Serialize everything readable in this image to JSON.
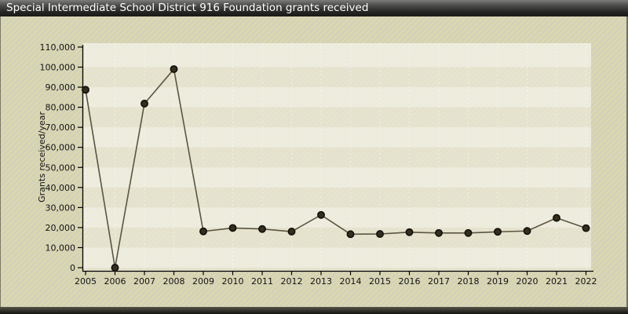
{
  "window": {
    "title": "Special Intermediate School District 916 Foundation grants received"
  },
  "chart_data": {
    "type": "line",
    "title": "Special Intermediate School District 916 Foundation grants received",
    "xlabel": "",
    "ylabel": "Grants received/year",
    "x": [
      "2005",
      "2006",
      "2007",
      "2008",
      "2009",
      "2010",
      "2011",
      "2012",
      "2013",
      "2014",
      "2015",
      "2016",
      "2017",
      "2018",
      "2019",
      "2020",
      "2021",
      "2022"
    ],
    "series": [
      {
        "name": "Grants received per year",
        "values": [
          88700,
          0,
          81800,
          99000,
          18100,
          19800,
          19300,
          18000,
          26300,
          16700,
          16800,
          17700,
          17300,
          17300,
          17900,
          18300,
          24800,
          19700
        ]
      }
    ],
    "ylim": [
      0,
      110000
    ],
    "ytick_step": 10000,
    "ytick_labels": [
      "0",
      "10,000",
      "20,000",
      "30,000",
      "40,000",
      "50,000",
      "60,000",
      "70,000",
      "80,000",
      "90,000",
      "100,000",
      "110,000"
    ],
    "legend_position": "none",
    "grid": "faint horizontal value bands and dashed vertical year gridlines",
    "colors": {
      "titlebar_text": "#ffffff",
      "titlebar_bg_top": "#7d7d7b",
      "titlebar_bg_bottom": "#1b1b19",
      "page_stripe_a": "#dcd9a9",
      "page_stripe_b": "#d2d1bb",
      "plot_overlay": "rgba(243,241,232,0.5)",
      "band_light": "rgba(255,255,255,0.33)",
      "gridline_dashed": "rgba(255,255,255,0.5)",
      "axis": "#000000",
      "line": "#5a553f",
      "marker_fill": "#332e1d",
      "marker_stroke": "#0f0d08"
    }
  }
}
